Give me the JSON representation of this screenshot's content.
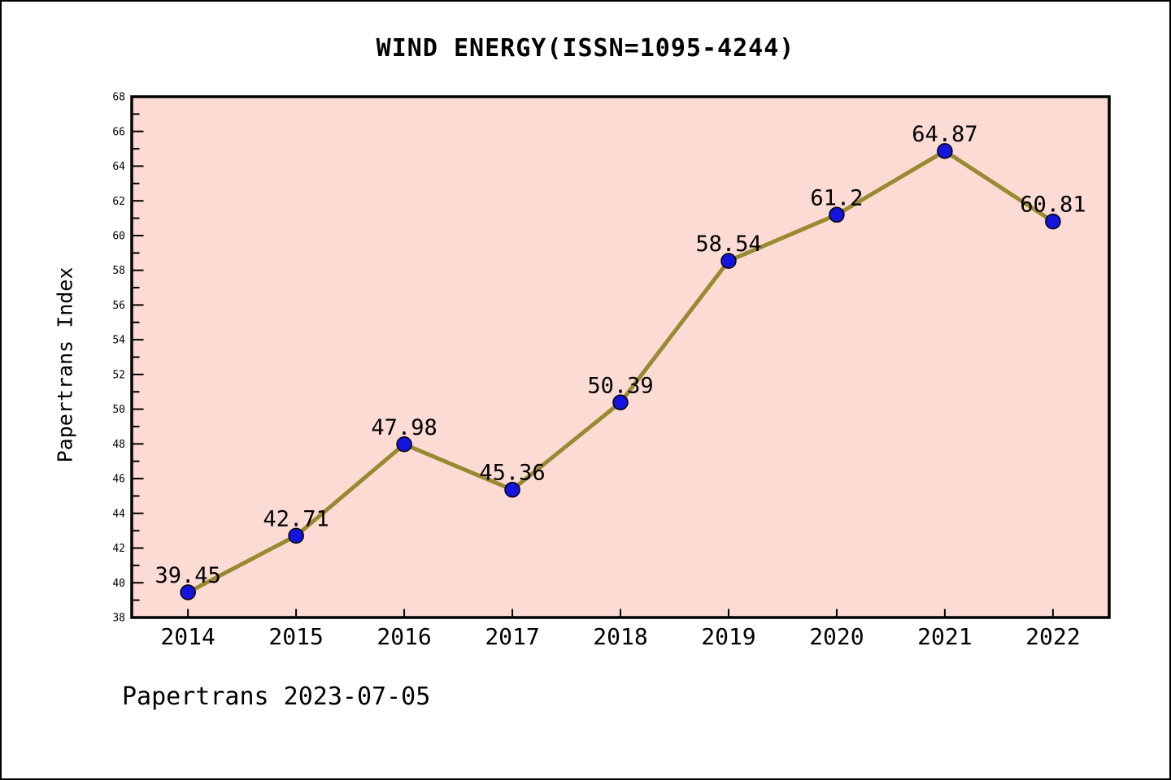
{
  "page": {
    "background": "#ffffff",
    "border_color": "#000000"
  },
  "footer": "Papertrans 2023-07-05",
  "chart_data": {
    "type": "line",
    "title": "WIND ENERGY(ISSN=1095-4244)",
    "ylabel": "Papertrans Index",
    "xlabel": "",
    "x": [
      2014,
      2015,
      2016,
      2017,
      2018,
      2019,
      2020,
      2021,
      2022
    ],
    "categories": [
      "2014",
      "2015",
      "2016",
      "2017",
      "2018",
      "2019",
      "2020",
      "2021",
      "2022"
    ],
    "values": [
      39.45,
      42.71,
      47.98,
      45.36,
      50.39,
      58.54,
      61.2,
      64.87,
      60.81
    ],
    "point_labels": [
      "39.45",
      "42.71",
      "47.98",
      "45.36",
      "50.39",
      "58.54",
      "61.2",
      "64.87",
      "60.81"
    ],
    "ylim": [
      38,
      68
    ],
    "xlim": [
      2013.48,
      2022.52
    ],
    "y_major_step": 2,
    "y_minor_step": 1,
    "grid": false,
    "legend": "none",
    "plot_bg": "#fcdbd5",
    "line_color": "#998a31",
    "marker_color": "#1414dd",
    "marker_edge_color": "#000000",
    "axis_color": "#000000",
    "text_color": "#000000"
  }
}
